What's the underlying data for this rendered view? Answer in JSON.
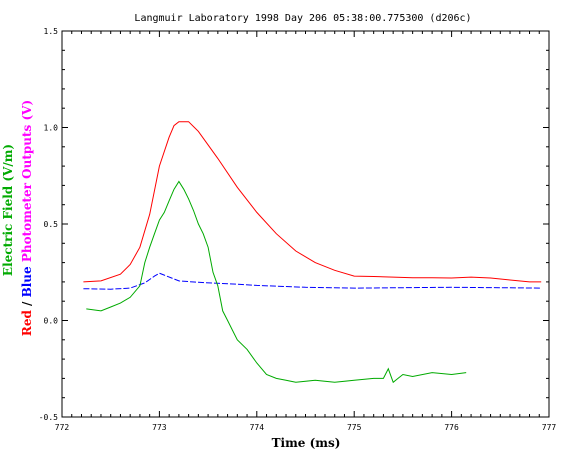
{
  "chart_data": {
    "type": "line",
    "title": "Langmuir Laboratory  1998  Day 206  05:38:00.775300  (d206c)",
    "xlabel": "Time (ms)",
    "ylabel_parts": [
      {
        "text": "Red",
        "color": "#ff0000"
      },
      {
        "text": " / ",
        "color": "#000000"
      },
      {
        "text": "Blue",
        "color": "#0000ff"
      },
      {
        "text": "  Photometer Outputs (V)",
        "color": "#ff00ff"
      }
    ],
    "ylabel_top": {
      "text": "Electric Field (V/m)",
      "color": "#00aa00"
    },
    "xlim": [
      772,
      777
    ],
    "ylim": [
      -0.5,
      1.5
    ],
    "xticks": [
      "772",
      "773",
      "774",
      "775",
      "776",
      "777"
    ],
    "xtick_values": [
      772,
      773,
      774,
      775,
      776,
      777
    ],
    "yticks": [
      "-0.5",
      "0.0",
      "0.5",
      "1.0",
      "1.5"
    ],
    "ytick_values": [
      -0.5,
      0.0,
      0.5,
      1.0,
      1.5
    ],
    "series": [
      {
        "name": "Red",
        "color": "#ff0000",
        "x": [
          772.22,
          772.4,
          772.6,
          772.7,
          772.8,
          772.9,
          773.0,
          773.1,
          773.15,
          773.2,
          773.3,
          773.4,
          773.5,
          773.6,
          773.8,
          774.0,
          774.2,
          774.4,
          774.6,
          774.8,
          775.0,
          775.2,
          775.4,
          775.6,
          775.8,
          776.0,
          776.2,
          776.4,
          776.6,
          776.8,
          776.92
        ],
        "y": [
          0.2,
          0.205,
          0.24,
          0.29,
          0.38,
          0.55,
          0.8,
          0.95,
          1.01,
          1.03,
          1.03,
          0.98,
          0.91,
          0.84,
          0.69,
          0.56,
          0.45,
          0.36,
          0.3,
          0.26,
          0.23,
          0.228,
          0.225,
          0.222,
          0.222,
          0.22,
          0.225,
          0.22,
          0.21,
          0.2,
          0.2
        ]
      },
      {
        "name": "Blue",
        "color": "#0000ff",
        "x": [
          772.22,
          772.5,
          772.7,
          772.85,
          772.95,
          773.0,
          773.05,
          773.2,
          773.4,
          773.6,
          773.8,
          774.0,
          774.5,
          775.0,
          775.5,
          776.0,
          776.5,
          776.92
        ],
        "y": [
          0.165,
          0.162,
          0.168,
          0.195,
          0.23,
          0.245,
          0.235,
          0.205,
          0.198,
          0.193,
          0.188,
          0.182,
          0.172,
          0.168,
          0.17,
          0.172,
          0.17,
          0.168
        ]
      },
      {
        "name": "Green",
        "color": "#00aa00",
        "x": [
          772.25,
          772.4,
          772.5,
          772.6,
          772.7,
          772.8,
          772.85,
          772.9,
          772.95,
          773.0,
          773.05,
          773.1,
          773.15,
          773.2,
          773.25,
          773.3,
          773.35,
          773.4,
          773.45,
          773.5,
          773.55,
          773.6,
          773.65,
          773.7,
          773.75,
          773.8,
          773.9,
          774.0,
          774.1,
          774.2,
          774.3,
          774.4,
          774.6,
          774.8,
          775.0,
          775.2,
          775.3,
          775.35,
          775.4,
          775.45,
          775.5,
          775.6,
          775.8,
          776.0,
          776.15
        ],
        "y": [
          0.06,
          0.05,
          0.07,
          0.09,
          0.12,
          0.18,
          0.3,
          0.38,
          0.45,
          0.52,
          0.56,
          0.62,
          0.68,
          0.72,
          0.68,
          0.63,
          0.57,
          0.5,
          0.45,
          0.38,
          0.25,
          0.18,
          0.05,
          0.0,
          -0.05,
          -0.1,
          -0.15,
          -0.22,
          -0.28,
          -0.3,
          -0.31,
          -0.32,
          -0.31,
          -0.32,
          -0.31,
          -0.3,
          -0.3,
          -0.25,
          -0.32,
          -0.3,
          -0.28,
          -0.29,
          -0.27,
          -0.28,
          -0.27
        ]
      }
    ]
  }
}
